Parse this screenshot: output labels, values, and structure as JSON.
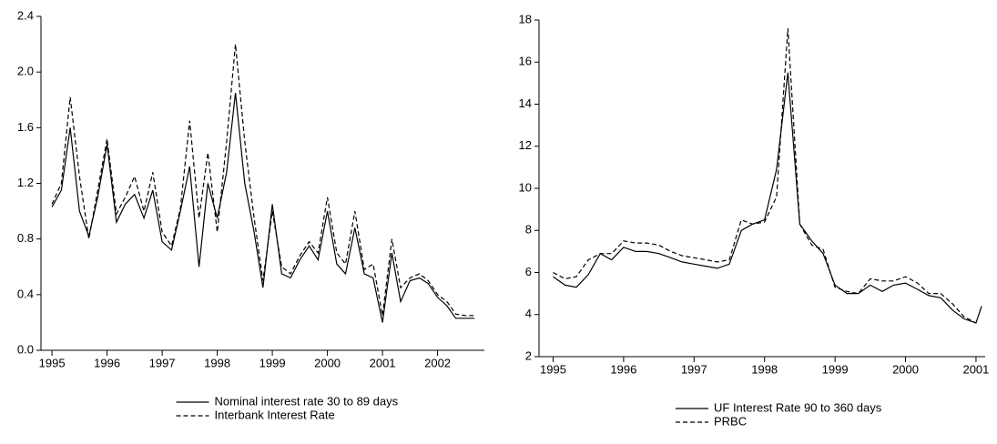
{
  "chart_data": [
    {
      "type": "line",
      "x": [
        1995.0,
        1995.17,
        1995.33,
        1995.5,
        1995.67,
        1995.83,
        1996.0,
        1996.17,
        1996.33,
        1996.5,
        1996.67,
        1996.83,
        1997.0,
        1997.17,
        1997.33,
        1997.5,
        1997.67,
        1997.83,
        1998.0,
        1998.17,
        1998.33,
        1998.5,
        1998.67,
        1998.83,
        1999.0,
        1999.17,
        1999.33,
        1999.5,
        1999.67,
        1999.83,
        2000.0,
        2000.17,
        2000.33,
        2000.5,
        2000.67,
        2000.83,
        2001.0,
        2001.17,
        2001.33,
        2001.5,
        2001.67,
        2001.83,
        2002.0,
        2002.17,
        2002.33,
        2002.5,
        2002.67
      ],
      "series": [
        {
          "name": "Nominal interest rate 30 to 89 days",
          "color": "#000000",
          "line_style": "solid",
          "values": [
            1.03,
            1.15,
            1.6,
            1.0,
            0.82,
            1.1,
            1.48,
            0.92,
            1.05,
            1.12,
            0.95,
            1.15,
            0.78,
            0.72,
            1.0,
            1.32,
            0.6,
            1.2,
            0.95,
            1.28,
            1.85,
            1.2,
            0.85,
            0.45,
            1.05,
            0.55,
            0.52,
            0.65,
            0.75,
            0.65,
            1.0,
            0.62,
            0.55,
            0.88,
            0.55,
            0.52,
            0.2,
            0.7,
            0.35,
            0.5,
            0.52,
            0.48,
            0.38,
            0.32,
            0.23,
            0.23,
            0.23
          ]
        },
        {
          "name": "Interbank Interest Rate",
          "color": "#000000",
          "line_style": "dashed",
          "values": [
            1.05,
            1.2,
            1.82,
            1.25,
            0.8,
            1.15,
            1.52,
            0.98,
            1.1,
            1.25,
            1.0,
            1.28,
            0.85,
            0.75,
            1.02,
            1.65,
            0.95,
            1.42,
            0.85,
            1.5,
            2.2,
            1.5,
            0.95,
            0.5,
            1.0,
            0.6,
            0.55,
            0.68,
            0.78,
            0.7,
            1.1,
            0.7,
            0.62,
            1.0,
            0.58,
            0.62,
            0.25,
            0.8,
            0.45,
            0.52,
            0.55,
            0.5,
            0.4,
            0.35,
            0.26,
            0.25,
            0.25
          ]
        }
      ],
      "xlim": [
        1994.8,
        2002.85
      ],
      "xticks": [
        1995,
        1996,
        1997,
        1998,
        1999,
        2000,
        2001,
        2002
      ],
      "ylim": [
        0,
        2.4
      ],
      "yticks": [
        {
          "value": 0,
          "label": "0.0"
        },
        0.4,
        0.8,
        1.2,
        1.6,
        {
          "value": 2,
          "label": "2.0"
        },
        2.4
      ],
      "legend": "bottom"
    },
    {
      "type": "line",
      "x": [
        1995.0,
        1995.17,
        1995.33,
        1995.5,
        1995.67,
        1995.83,
        1996.0,
        1996.17,
        1996.33,
        1996.5,
        1996.67,
        1996.83,
        1997.0,
        1997.17,
        1997.33,
        1997.5,
        1997.67,
        1997.83,
        1998.0,
        1998.17,
        1998.33,
        1998.5,
        1998.67,
        1998.83,
        1999.0,
        1999.17,
        1999.33,
        1999.5,
        1999.67,
        1999.83,
        2000.0,
        2000.17,
        2000.33,
        2000.5,
        2000.67,
        2000.83,
        2001.0,
        2001.08
      ],
      "series": [
        {
          "name": "UF Interest Rate 90 to 360 days",
          "color": "#000000",
          "line_style": "solid",
          "values": [
            5.8,
            5.4,
            5.3,
            5.9,
            6.9,
            6.6,
            7.2,
            7.0,
            7.0,
            6.9,
            6.7,
            6.5,
            6.4,
            6.3,
            6.2,
            6.4,
            8.0,
            8.3,
            8.5,
            10.9,
            15.5,
            8.3,
            7.5,
            6.9,
            5.4,
            5.0,
            5.0,
            5.4,
            5.1,
            5.4,
            5.5,
            5.2,
            4.9,
            4.8,
            4.2,
            3.8,
            3.6,
            4.4
          ]
        },
        {
          "name": "PRBC",
          "color": "#000000",
          "line_style": "dashed",
          "values": [
            6.0,
            5.7,
            5.8,
            6.6,
            6.9,
            6.9,
            7.5,
            7.4,
            7.4,
            7.3,
            7.0,
            6.8,
            6.7,
            6.6,
            6.5,
            6.6,
            8.5,
            8.3,
            8.4,
            9.6,
            17.6,
            8.3,
            7.3,
            7.1,
            5.3,
            5.1,
            5.0,
            5.7,
            5.6,
            5.6,
            5.8,
            5.5,
            5.0,
            5.0,
            4.5,
            3.9,
            3.6,
            null
          ]
        }
      ],
      "xlim": [
        1994.8,
        2001.13
      ],
      "xticks": [
        1995,
        1996,
        1997,
        1998,
        1999,
        2000,
        2001
      ],
      "ylim": [
        2,
        18
      ],
      "yticks": [
        2,
        4,
        6,
        8,
        10,
        12,
        14,
        16,
        18
      ],
      "legend": "bottom"
    }
  ]
}
